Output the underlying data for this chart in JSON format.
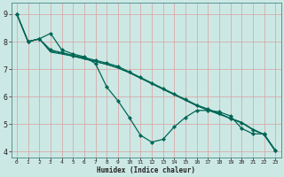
{
  "title": "",
  "xlabel": "Humidex (Indice chaleur)",
  "ylabel": "",
  "bg_color": "#cce8e4",
  "grid_color": "#d8a0a0",
  "line_color": "#006655",
  "xlim": [
    -0.5,
    23.5
  ],
  "ylim": [
    3.8,
    9.4
  ],
  "xticks": [
    0,
    1,
    2,
    3,
    4,
    5,
    6,
    7,
    8,
    9,
    10,
    11,
    12,
    13,
    14,
    15,
    16,
    17,
    18,
    19,
    20,
    21,
    22,
    23
  ],
  "yticks": [
    4,
    5,
    6,
    7,
    8,
    9
  ],
  "series1_x": [
    0,
    1,
    2,
    3,
    4,
    5,
    6,
    7,
    8,
    9,
    10,
    11,
    12,
    13,
    14,
    15,
    16,
    17,
    18,
    19,
    20,
    21,
    22,
    23
  ],
  "series1_y": [
    9.0,
    8.0,
    8.1,
    8.3,
    7.7,
    7.55,
    7.45,
    7.2,
    6.35,
    5.85,
    5.25,
    4.6,
    4.35,
    4.45,
    4.9,
    5.25,
    5.5,
    5.5,
    5.45,
    5.3,
    4.85,
    4.65,
    4.65,
    4.05
  ],
  "series2_x": [
    0,
    1,
    2,
    3,
    4,
    5,
    6,
    7,
    8,
    9,
    10,
    11,
    12,
    13,
    14,
    15,
    16,
    17,
    18,
    19,
    20,
    21,
    22,
    23
  ],
  "series2_y": [
    9.0,
    8.0,
    8.1,
    7.7,
    7.6,
    7.5,
    7.42,
    7.32,
    7.22,
    7.1,
    6.9,
    6.7,
    6.5,
    6.3,
    6.1,
    5.9,
    5.7,
    5.55,
    5.4,
    5.2,
    5.05,
    4.8,
    4.62,
    4.05
  ],
  "series3_x": [
    0,
    1,
    2,
    3,
    4,
    5,
    6,
    7,
    8,
    9,
    10,
    11,
    12,
    13,
    14,
    15,
    16,
    17,
    18,
    19,
    20,
    21,
    22,
    23
  ],
  "series3_y": [
    9.0,
    8.0,
    8.1,
    7.65,
    7.58,
    7.48,
    7.38,
    7.28,
    7.18,
    7.05,
    6.88,
    6.68,
    6.48,
    6.28,
    6.08,
    5.88,
    5.68,
    5.52,
    5.37,
    5.22,
    5.07,
    4.82,
    4.63,
    4.03
  ],
  "series4_x": [
    0,
    1,
    2,
    3,
    4,
    5,
    6,
    7,
    8,
    9,
    10,
    11,
    12,
    13,
    14,
    15,
    16,
    17,
    18,
    19,
    20,
    21,
    22,
    23
  ],
  "series4_y": [
    9.0,
    8.0,
    8.1,
    7.62,
    7.55,
    7.47,
    7.37,
    7.27,
    7.17,
    7.04,
    6.87,
    6.67,
    6.47,
    6.27,
    6.07,
    5.87,
    5.67,
    5.51,
    5.36,
    5.21,
    5.06,
    4.81,
    4.62,
    4.02
  ],
  "xlabel_fontsize": 5.5,
  "tick_fontsize_x": 4.5,
  "tick_fontsize_y": 6
}
